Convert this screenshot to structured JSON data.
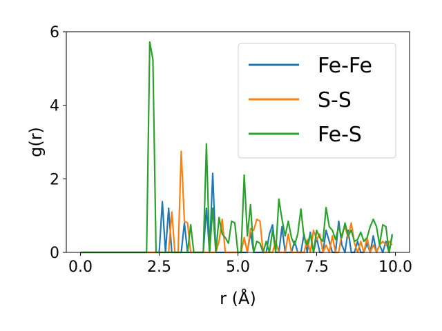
{
  "chart_data": {
    "type": "line",
    "title": "",
    "xlabel": "r (Å)",
    "ylabel": "g(r)",
    "xlim": [
      -0.45,
      10.45
    ],
    "ylim": [
      0,
      6
    ],
    "xticks": [
      "0.0",
      "2.5",
      "5.0",
      "7.5",
      "10.0"
    ],
    "yticks": [
      "0",
      "2",
      "4",
      "6"
    ],
    "grid": false,
    "legend_position": "top-right",
    "series": [
      {
        "name": "Fe-Fe",
        "color": "#1f77b4",
        "x": [
          0.0,
          0.1,
          0.2,
          0.3,
          0.4,
          0.5,
          0.6,
          0.7,
          0.8,
          0.9,
          1.0,
          1.1,
          1.2,
          1.3,
          1.4,
          1.5,
          1.6,
          1.7,
          1.8,
          1.9,
          2.0,
          2.1,
          2.2,
          2.3,
          2.4,
          2.5,
          2.6,
          2.7,
          2.8,
          2.9,
          3.0,
          3.1,
          3.2,
          3.3,
          3.4,
          3.5,
          3.6,
          3.7,
          3.8,
          3.9,
          4.0,
          4.1,
          4.2,
          4.3,
          4.4,
          4.5,
          4.6,
          4.7,
          4.8,
          4.9,
          5.0,
          5.1,
          5.2,
          5.3,
          5.4,
          5.5,
          5.6,
          5.7,
          5.8,
          5.9,
          6.0,
          6.1,
          6.2,
          6.3,
          6.4,
          6.5,
          6.6,
          6.7,
          6.8,
          6.9,
          7.0,
          7.1,
          7.2,
          7.3,
          7.4,
          7.5,
          7.6,
          7.7,
          7.8,
          7.9,
          8.0,
          8.1,
          8.2,
          8.3,
          8.4,
          8.5,
          8.6,
          8.7,
          8.8,
          8.9,
          9.0,
          9.1,
          9.2,
          9.3,
          9.4,
          9.5,
          9.6,
          9.7,
          9.8,
          9.9
        ],
        "values": [
          0,
          0,
          0,
          0,
          0,
          0,
          0,
          0,
          0,
          0,
          0,
          0,
          0,
          0,
          0,
          0,
          0,
          0,
          0,
          0,
          0,
          0,
          0,
          0,
          0,
          0,
          1.38,
          0,
          1.2,
          0,
          0,
          0,
          0,
          0.8,
          0,
          0,
          0,
          0,
          0,
          0,
          1.2,
          0,
          2.15,
          0,
          0,
          0,
          0,
          0,
          0,
          0,
          0,
          0,
          0,
          0,
          0.55,
          0,
          0,
          0,
          0,
          0,
          0.5,
          0.75,
          0,
          0,
          0.7,
          0,
          0,
          0,
          0.3,
          0,
          0,
          0.5,
          0,
          0.55,
          0,
          0.4,
          0,
          0,
          0.6,
          0.3,
          0,
          0,
          0.85,
          0.2,
          0,
          0.6,
          0,
          0,
          0.3,
          0,
          0,
          0.25,
          0,
          0.45,
          0,
          0.2,
          0,
          0.3,
          0,
          0.45
        ]
      },
      {
        "name": "S-S",
        "color": "#ff7f0e",
        "x": [
          0.0,
          0.1,
          0.2,
          0.3,
          0.4,
          0.5,
          0.6,
          0.7,
          0.8,
          0.9,
          1.0,
          1.1,
          1.2,
          1.3,
          1.4,
          1.5,
          1.6,
          1.7,
          1.8,
          1.9,
          2.0,
          2.1,
          2.2,
          2.3,
          2.4,
          2.5,
          2.6,
          2.7,
          2.8,
          2.9,
          3.0,
          3.1,
          3.2,
          3.3,
          3.4,
          3.5,
          3.6,
          3.7,
          3.8,
          3.9,
          4.0,
          4.1,
          4.2,
          4.3,
          4.4,
          4.5,
          4.6,
          4.7,
          4.8,
          4.9,
          5.0,
          5.1,
          5.2,
          5.3,
          5.4,
          5.5,
          5.6,
          5.7,
          5.8,
          5.9,
          6.0,
          6.1,
          6.2,
          6.3,
          6.4,
          6.5,
          6.6,
          6.7,
          6.8,
          6.9,
          7.0,
          7.1,
          7.2,
          7.3,
          7.4,
          7.5,
          7.6,
          7.7,
          7.8,
          7.9,
          8.0,
          8.1,
          8.2,
          8.3,
          8.4,
          8.5,
          8.6,
          8.7,
          8.8,
          8.9,
          9.0,
          9.1,
          9.2,
          9.3,
          9.4,
          9.5,
          9.6,
          9.7,
          9.8,
          9.9
        ],
        "values": [
          0,
          0,
          0,
          0,
          0,
          0,
          0,
          0,
          0,
          0,
          0,
          0,
          0,
          0,
          0,
          0,
          0,
          0,
          0,
          0,
          0,
          0,
          0,
          0,
          0,
          0,
          0,
          0,
          0,
          1.1,
          0,
          0,
          2.75,
          0.85,
          0.8,
          0,
          0,
          0,
          0,
          0,
          0,
          0,
          0,
          0,
          0.3,
          0.9,
          0,
          0,
          0,
          0,
          0,
          0,
          0.4,
          0,
          0.65,
          0.6,
          0.9,
          0.85,
          0,
          0,
          0,
          0,
          0.3,
          0,
          0,
          0,
          0.5,
          0,
          0,
          0,
          0,
          0,
          0.35,
          0,
          0.6,
          0.35,
          0.5,
          0,
          0.2,
          0,
          0.45,
          0,
          0,
          0.5,
          0.7,
          0.4,
          0.8,
          0.25,
          0,
          0.3,
          0,
          0.4,
          0,
          0.2,
          0,
          0.2,
          0.3,
          0.2,
          0.3,
          0.2
        ]
      },
      {
        "name": "Fe-S",
        "color": "#2ca02c",
        "x": [
          0.0,
          0.1,
          0.2,
          0.3,
          0.4,
          0.5,
          0.6,
          0.7,
          0.8,
          0.9,
          1.0,
          1.1,
          1.2,
          1.3,
          1.4,
          1.5,
          1.6,
          1.7,
          1.8,
          1.9,
          2.0,
          2.1,
          2.2,
          2.3,
          2.4,
          2.5,
          2.6,
          2.7,
          2.8,
          2.9,
          3.0,
          3.1,
          3.2,
          3.3,
          3.4,
          3.5,
          3.6,
          3.7,
          3.8,
          3.9,
          4.0,
          4.1,
          4.2,
          4.3,
          4.4,
          4.5,
          4.6,
          4.7,
          4.8,
          4.9,
          5.0,
          5.1,
          5.2,
          5.3,
          5.4,
          5.5,
          5.6,
          5.7,
          5.8,
          5.9,
          6.0,
          6.1,
          6.2,
          6.3,
          6.4,
          6.5,
          6.6,
          6.7,
          6.8,
          6.9,
          7.0,
          7.1,
          7.2,
          7.3,
          7.4,
          7.5,
          7.6,
          7.7,
          7.8,
          7.9,
          8.0,
          8.1,
          8.2,
          8.3,
          8.4,
          8.5,
          8.6,
          8.7,
          8.8,
          8.9,
          9.0,
          9.1,
          9.2,
          9.3,
          9.4,
          9.5,
          9.6,
          9.7,
          9.8,
          9.9
        ],
        "values": [
          0,
          0,
          0,
          0,
          0,
          0,
          0,
          0,
          0,
          0,
          0,
          0,
          0,
          0,
          0,
          0,
          0,
          0,
          0,
          0,
          0,
          0,
          5.72,
          5.25,
          0,
          0,
          0,
          0,
          0,
          0,
          0,
          0,
          0,
          0,
          0,
          0.75,
          0,
          0,
          0,
          0,
          2.95,
          0,
          1.2,
          0,
          0.95,
          0.5,
          0.4,
          0.25,
          0.85,
          0.8,
          0,
          0,
          2.1,
          0.45,
          1.3,
          0,
          0.3,
          0.25,
          0,
          0.3,
          0,
          0.6,
          0,
          1.45,
          0.9,
          0.45,
          0.85,
          0.4,
          0.2,
          0.5,
          1.18,
          0.4,
          0.2,
          0.5,
          0,
          0.6,
          0.4,
          0.3,
          1.22,
          0.7,
          0.6,
          0.35,
          0.7,
          0.4,
          0.8,
          0.45,
          0.6,
          0.3,
          0.35,
          0.55,
          0.3,
          0.4,
          0.7,
          0.9,
          0.7,
          0.2,
          0.75,
          0.7,
          0,
          0.5
        ]
      }
    ]
  }
}
